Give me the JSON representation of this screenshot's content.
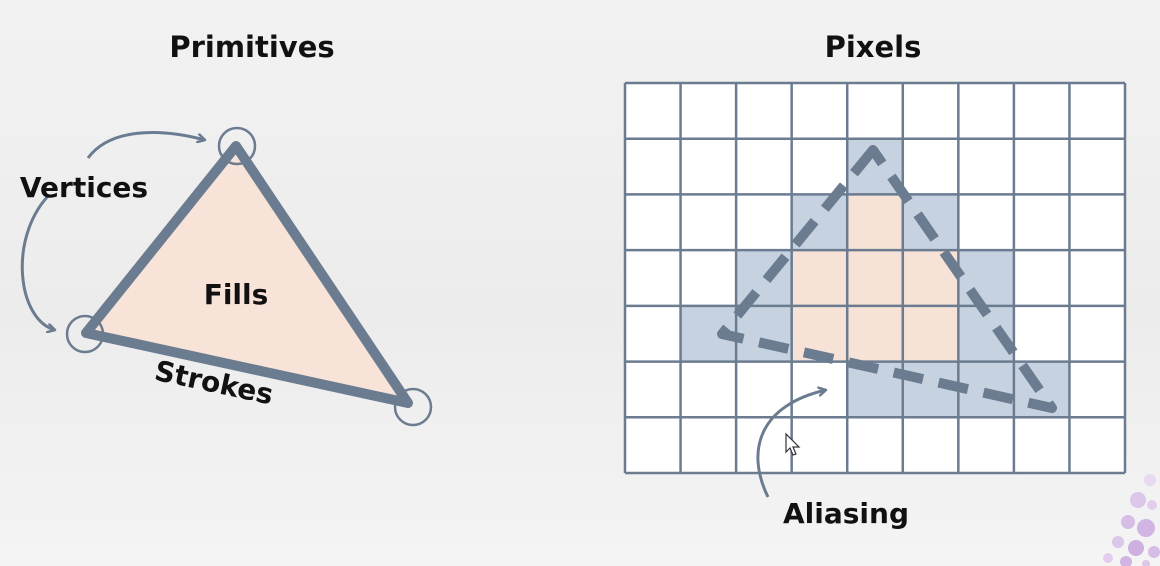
{
  "left_panel": {
    "title": "Primitives",
    "labels": {
      "vertices": "Vertices",
      "fills": "Fills",
      "strokes": "Strokes"
    }
  },
  "right_panel": {
    "title": "Pixels",
    "grid": {
      "columns": 9,
      "rows": 7
    },
    "labels": {
      "aliasing": "Aliasing"
    },
    "covered_cells": [
      [
        4,
        1
      ],
      [
        3,
        2
      ],
      [
        4,
        2
      ],
      [
        5,
        2
      ],
      [
        2,
        3
      ],
      [
        3,
        3
      ],
      [
        4,
        3
      ],
      [
        5,
        3
      ],
      [
        6,
        3
      ],
      [
        1,
        4
      ],
      [
        2,
        4
      ],
      [
        3,
        4
      ],
      [
        4,
        4
      ],
      [
        5,
        4
      ],
      [
        6,
        4
      ],
      [
        4,
        5
      ],
      [
        5,
        5
      ],
      [
        6,
        5
      ],
      [
        7,
        5
      ]
    ],
    "interior_cells": [
      [
        4,
        2
      ],
      [
        3,
        3
      ],
      [
        4,
        3
      ],
      [
        5,
        3
      ],
      [
        3,
        4
      ],
      [
        4,
        4
      ],
      [
        5,
        4
      ]
    ]
  },
  "colors": {
    "stroke": "#6b7c90",
    "fill": "#f7e3d7",
    "grid_line": "#6b7c90",
    "pixel_edge": "#c6d2e0",
    "pixel_interior": "#f6e2d6",
    "text": "#111111"
  }
}
